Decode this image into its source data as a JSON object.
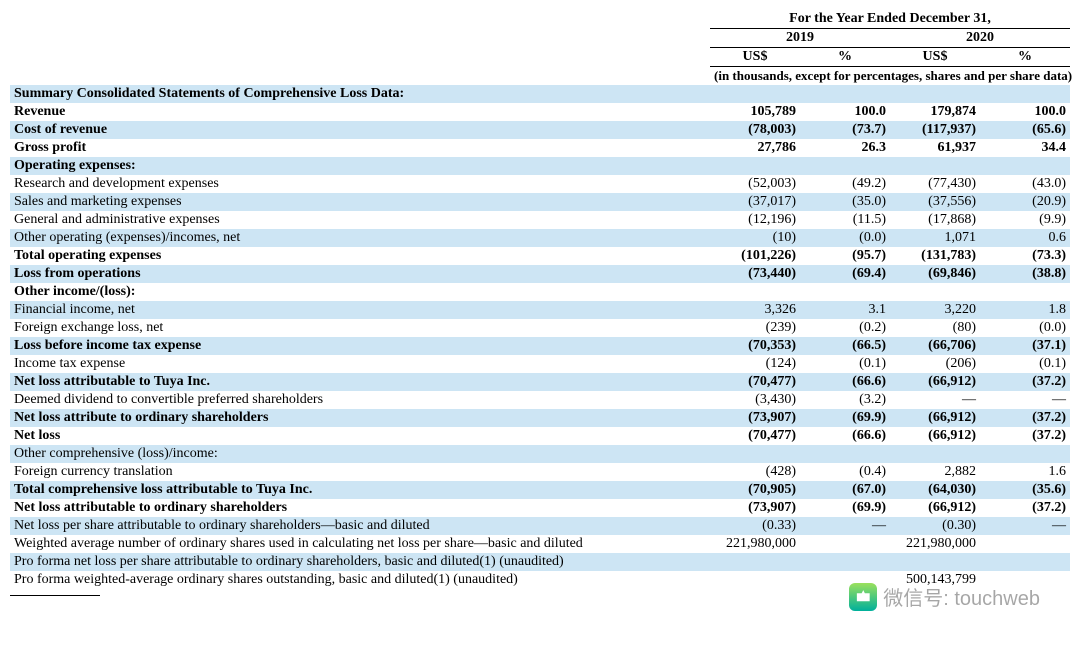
{
  "header": {
    "period": "For the Year Ended December 31,",
    "years": [
      "2019",
      "2020"
    ],
    "subcols": [
      "US$",
      "%",
      "US$",
      "%"
    ],
    "note": "(in thousands, except for percentages, shares and per share data)"
  },
  "rows": [
    {
      "label": "Summary Consolidated Statements of Comprehensive Loss Data:",
      "v": [
        "",
        "",
        "",
        ""
      ],
      "bold": true,
      "shade": true
    },
    {
      "label": "Revenue",
      "v": [
        "105,789",
        "100.0",
        "179,874",
        "100.0"
      ],
      "bold": true
    },
    {
      "label": "Cost of revenue",
      "v": [
        "(78,003)",
        "(73.7)",
        "(117,937)",
        "(65.6)"
      ],
      "bold": true,
      "shade": true
    },
    {
      "label": "Gross profit",
      "v": [
        "27,786",
        "26.3",
        "61,937",
        "34.4"
      ],
      "bold": true
    },
    {
      "label": "Operating expenses:",
      "v": [
        "",
        "",
        "",
        ""
      ],
      "bold": true,
      "shade": true
    },
    {
      "label": "Research and development expenses",
      "v": [
        "(52,003)",
        "(49.2)",
        "(77,430)",
        "(43.0)"
      ]
    },
    {
      "label": "Sales and marketing expenses",
      "v": [
        "(37,017)",
        "(35.0)",
        "(37,556)",
        "(20.9)"
      ],
      "shade": true
    },
    {
      "label": "General and administrative expenses",
      "v": [
        "(12,196)",
        "(11.5)",
        "(17,868)",
        "(9.9)"
      ]
    },
    {
      "label": "Other operating (expenses)/incomes, net",
      "v": [
        "(10)",
        "(0.0)",
        "1,071",
        "0.6"
      ],
      "shade": true
    },
    {
      "label": "Total operating expenses",
      "v": [
        "(101,226)",
        "(95.7)",
        "(131,783)",
        "(73.3)"
      ],
      "bold": true
    },
    {
      "label": "Loss from operations",
      "v": [
        "(73,440)",
        "(69.4)",
        "(69,846)",
        "(38.8)"
      ],
      "bold": true,
      "shade": true
    },
    {
      "label": "Other income/(loss):",
      "v": [
        "",
        "",
        "",
        ""
      ],
      "bold": true
    },
    {
      "label": "Financial income, net",
      "v": [
        "3,326",
        "3.1",
        "3,220",
        "1.8"
      ],
      "shade": true
    },
    {
      "label": "Foreign exchange loss, net",
      "v": [
        "(239)",
        "(0.2)",
        "(80)",
        "(0.0)"
      ]
    },
    {
      "label": "Loss before income tax expense",
      "v": [
        "(70,353)",
        "(66.5)",
        "(66,706)",
        "(37.1)"
      ],
      "bold": true,
      "shade": true
    },
    {
      "label": "Income tax expense",
      "v": [
        "(124)",
        "(0.1)",
        "(206)",
        "(0.1)"
      ]
    },
    {
      "label": "Net loss attributable to Tuya Inc.",
      "v": [
        "(70,477)",
        "(66.6)",
        "(66,912)",
        "(37.2)"
      ],
      "bold": true,
      "shade": true
    },
    {
      "label": "Deemed dividend to convertible preferred shareholders",
      "v": [
        "(3,430)",
        "(3.2)",
        "—",
        "—"
      ]
    },
    {
      "label": "Net loss attribute to ordinary shareholders",
      "v": [
        "(73,907)",
        "(69.9)",
        "(66,912)",
        "(37.2)"
      ],
      "bold": true,
      "shade": true
    },
    {
      "label": "Net loss",
      "v": [
        "(70,477)",
        "(66.6)",
        "(66,912)",
        "(37.2)"
      ],
      "bold": true
    },
    {
      "label": "Other comprehensive (loss)/income:",
      "v": [
        "",
        "",
        "",
        ""
      ],
      "shade": true
    },
    {
      "label": "Foreign currency translation",
      "v": [
        "(428)",
        "(0.4)",
        "2,882",
        "1.6"
      ]
    },
    {
      "label": "Total comprehensive loss attributable to Tuya Inc.",
      "v": [
        "(70,905)",
        "(67.0)",
        "(64,030)",
        "(35.6)"
      ],
      "bold": true,
      "shade": true
    },
    {
      "label": "Net loss attributable to ordinary shareholders",
      "v": [
        "(73,907)",
        "(69.9)",
        "(66,912)",
        "(37.2)"
      ],
      "bold": true
    },
    {
      "label": "Net loss per share attributable to ordinary shareholders—basic and diluted",
      "v": [
        "(0.33)",
        "—",
        "(0.30)",
        "—"
      ],
      "shade": true
    },
    {
      "label": "Weighted average number of ordinary shares used in calculating net loss per share—basic and diluted",
      "v": [
        "221,980,000",
        "",
        "221,980,000",
        ""
      ]
    },
    {
      "label": "Pro forma net loss per share attributable to ordinary shareholders, basic and diluted(1) (unaudited)",
      "v": [
        "",
        "",
        "",
        ""
      ],
      "shade": true
    },
    {
      "label": "Pro forma weighted-average ordinary shares outstanding, basic and diluted(1) (unaudited)",
      "v": [
        "",
        "",
        "500,143,799",
        ""
      ]
    }
  ],
  "watermark": {
    "text": "微信号: touchweb"
  }
}
